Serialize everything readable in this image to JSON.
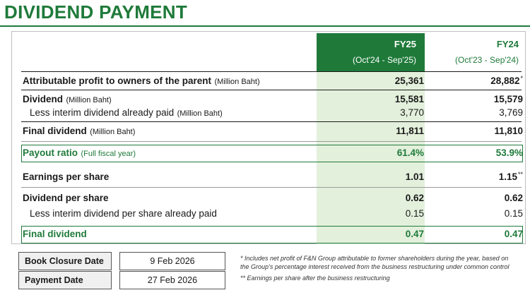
{
  "title": "DIVIDEND PAYMENT",
  "colors": {
    "accent": "#1f7a3a",
    "fy25_fill": "#e3f0dc"
  },
  "columns": {
    "fy25": {
      "year": "FY25",
      "period": "(Oct'24 - Sep'25)"
    },
    "fy24": {
      "year": "FY24",
      "period": "(Oct'23 - Sep'24)"
    }
  },
  "rows": {
    "attributable": {
      "label": "Attributable profit to owners of the parent",
      "unit": "(Million Baht)",
      "fy25": "25,361",
      "fy24": "28,882",
      "fy24_mark": "*"
    },
    "dividend": {
      "label": "Dividend",
      "unit": "(Million Baht)",
      "fy25": "15,581",
      "fy24": "15,579"
    },
    "interim": {
      "label": "Less interim dividend already paid",
      "unit": "(Million Baht)",
      "fy25": "3,770",
      "fy24": "3,769"
    },
    "final": {
      "label": "Final dividend",
      "unit": "(Million Baht)",
      "fy25": "11,811",
      "fy24": "11,810"
    },
    "payout": {
      "label": "Payout ratio",
      "unit": "(Full fiscal year)",
      "fy25": "61.4%",
      "fy24": "53.9%"
    },
    "eps": {
      "label": "Earnings per share",
      "fy25": "1.01",
      "fy24": "1.15",
      "fy24_mark": "**"
    },
    "dps": {
      "label": "Dividend per share",
      "fy25": "0.62",
      "fy24": "0.62"
    },
    "interim_ps": {
      "label": "Less interim dividend per share already paid",
      "fy25": "0.15",
      "fy24": "0.15"
    },
    "final_ps": {
      "label": "Final dividend",
      "fy25": "0.47",
      "fy24": "0.47"
    }
  },
  "dates": {
    "book_closure": {
      "label": "Book Closure Date",
      "value": "9 Feb 2026"
    },
    "payment": {
      "label": "Payment Date",
      "value": "27 Feb 2026"
    }
  },
  "notes": {
    "note1_line1": "* Includes net profit of F&N Group attributable to former shareholders during the year, based on",
    "note1_line2": "the Group’s percentage interest received from the business restructuring under common control",
    "note2": "** Earnings per share after the business restructuring"
  }
}
